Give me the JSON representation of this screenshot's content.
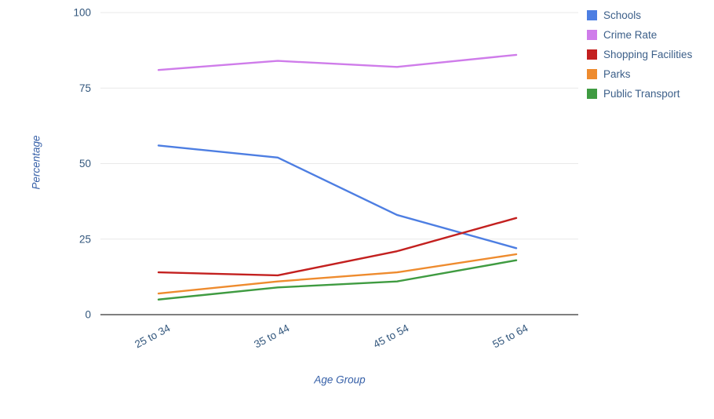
{
  "chart_data": {
    "type": "line",
    "title": "",
    "xlabel": "Age Group",
    "ylabel": "Percentage",
    "categories": [
      "25 to 34",
      "35 to 44",
      "45 to 54",
      "55 to 64"
    ],
    "series": [
      {
        "name": "Schools",
        "color": "#4d7ee2",
        "values": [
          56,
          52,
          33,
          22
        ]
      },
      {
        "name": "Crime Rate",
        "color": "#cf7cea",
        "values": [
          81,
          84,
          82,
          86
        ]
      },
      {
        "name": "Shopping Facilities",
        "color": "#c3201f",
        "values": [
          14,
          13,
          21,
          32
        ]
      },
      {
        "name": "Parks",
        "color": "#ee8b2e",
        "values": [
          7,
          11,
          14,
          20
        ]
      },
      {
        "name": "Public Transport",
        "color": "#3f9b41",
        "values": [
          5,
          9,
          11,
          18
        ]
      }
    ],
    "yticks": [
      0,
      25,
      50,
      75,
      100
    ],
    "ylim": [
      0,
      100
    ],
    "grid": true,
    "legend_position": "right-top",
    "style": {
      "gridline_color": "#e9e9e9",
      "baseline_color": "#7f7f7f",
      "tick_text_color": "#33577d",
      "axis_title_color": "#3660a8",
      "legend_text_color": "#3c5f89",
      "background": "#ffffff"
    }
  }
}
